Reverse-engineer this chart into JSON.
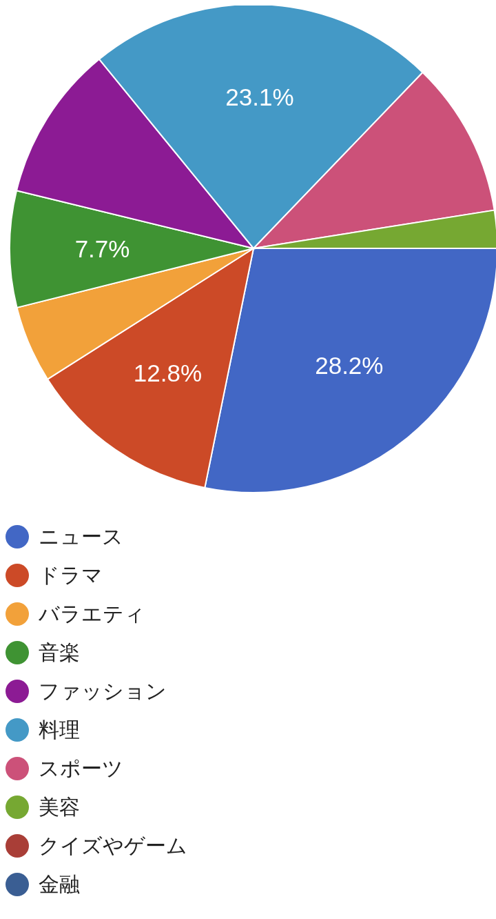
{
  "chart_data": {
    "type": "pie",
    "categories": [
      "ニュース",
      "ドラマ",
      "バラエティ",
      "音楽",
      "ファッション",
      "料理",
      "スポーツ",
      "美容",
      "クイズやゲーム",
      "金融"
    ],
    "values": [
      28.2,
      12.8,
      5.1,
      7.7,
      10.3,
      23.1,
      10.3,
      2.5,
      0,
      0
    ],
    "colors": [
      "#4267c5",
      "#cc4a27",
      "#f2a13a",
      "#3f9333",
      "#8c1b94",
      "#4499c6",
      "#cc5179",
      "#76a832",
      "#a93e37",
      "#3a5e93"
    ],
    "value_labels": [
      "28.2%",
      "12.8%",
      null,
      "7.7%",
      null,
      "23.1%",
      null,
      null,
      null,
      null
    ],
    "legend": "bottom"
  }
}
